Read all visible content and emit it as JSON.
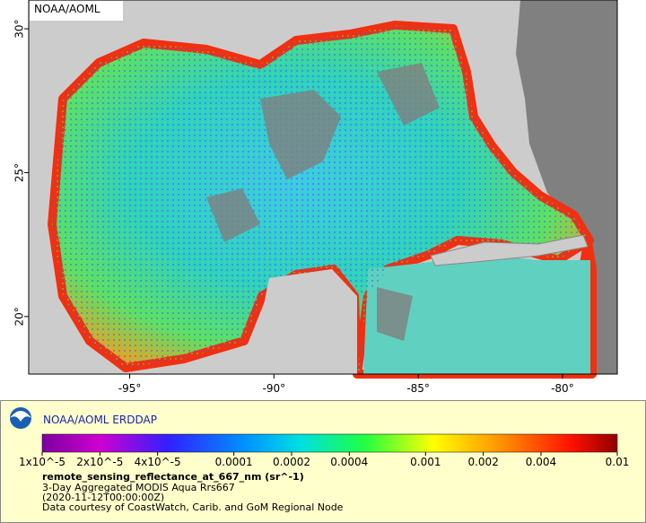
{
  "map": {
    "watermark": "NOAA/AOML",
    "xlim": [
      -98.5,
      -78.1
    ],
    "ylim": [
      18.0,
      31.0
    ],
    "lon_ticks": [
      {
        "value": -95,
        "label": "-95°"
      },
      {
        "value": -90,
        "label": "-90°"
      },
      {
        "value": -85,
        "label": "-85°"
      },
      {
        "value": -80,
        "label": "-80°"
      }
    ],
    "lat_ticks": [
      {
        "value": 20,
        "label": "20°"
      },
      {
        "value": 25,
        "label": "25°"
      },
      {
        "value": 30,
        "label": "30°"
      }
    ]
  },
  "legend": {
    "title": "NOAA/AOML ERDDAP",
    "colorbar": {
      "log_scale": true,
      "range": [
        1e-05,
        0.01
      ],
      "ticks": [
        {
          "value": 1e-05,
          "label": "1x10^-5"
        },
        {
          "value": 2e-05,
          "label": "2x10^-5"
        },
        {
          "value": 4e-05,
          "label": "4x10^-5"
        },
        0.0001,
        0.0002,
        0.0004,
        0.001,
        0.002,
        0.004,
        0.01
      ]
    },
    "variable": "remote_sensing_reflectance_at_667_nm (sr^-1)",
    "dataset": "3-Day Aggregated MODIS Aqua Rrs667",
    "time": "(2020-11-12T00:00:00Z)",
    "credit": "Data courtesy of CoastWatch, Carib. and GoM Regional Node"
  }
}
